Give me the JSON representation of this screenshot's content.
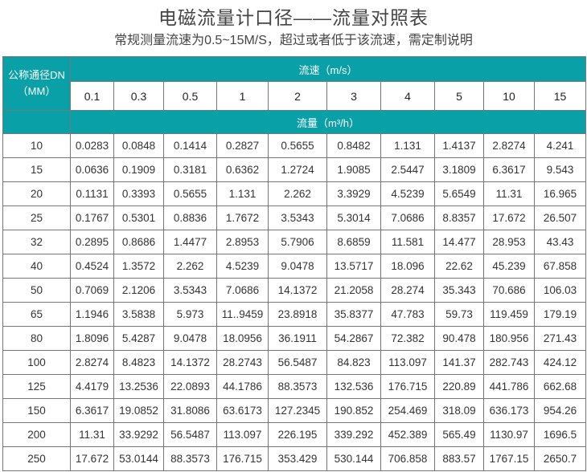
{
  "title": "电磁流量计口径——流量对照表",
  "subtitle": "常规测量流速为0.5~15M/S，超过或者低于该流速，需定制说明",
  "colors": {
    "header_bg": "#0aa0a8",
    "border": "#777777"
  },
  "table": {
    "dn_header_line1": "公称通径DN",
    "dn_header_line2": "（MM）",
    "velocity_header": "流速（m/s）",
    "flow_header": "流量（m³/h）",
    "velocities": [
      "0.1",
      "0.3",
      "0.5",
      "1",
      "2",
      "3",
      "4",
      "5",
      "10",
      "15"
    ],
    "rows": [
      {
        "dn": "10",
        "values": [
          "0.0283",
          "0.0848",
          "0.1414",
          "0.2827",
          "0.5655",
          "0.8482",
          "1.131",
          "1.4137",
          "2.8274",
          "4.241"
        ]
      },
      {
        "dn": "15",
        "values": [
          "0.0636",
          "0.1909",
          "0.3181",
          "0.6362",
          "1.2724",
          "1.9085",
          "2.5447",
          "3.1809",
          "6.3617",
          "9.543"
        ]
      },
      {
        "dn": "20",
        "values": [
          "0.1131",
          "0.3393",
          "0.5655",
          "1.131",
          "2.262",
          "3.3929",
          "4.5239",
          "5.6549",
          "11.31",
          "16.965"
        ]
      },
      {
        "dn": "25",
        "values": [
          "0.1767",
          "0.5301",
          "0.8836",
          "1.7672",
          "3.5343",
          "5.3014",
          "7.0686",
          "8.8357",
          "17.672",
          "26.507"
        ]
      },
      {
        "dn": "32",
        "values": [
          "0.2895",
          "0.8686",
          "1.4477",
          "2.8953",
          "5.7906",
          "8.6859",
          "11.581",
          "14.477",
          "28.953",
          "43.43"
        ]
      },
      {
        "dn": "40",
        "values": [
          "0.4524",
          "1.3572",
          "2.262",
          "4.5239",
          "9.0478",
          "13.5717",
          "18.096",
          "22.62",
          "45.239",
          "67.858"
        ]
      },
      {
        "dn": "50",
        "values": [
          "0.7069",
          "2.1206",
          "3.5343",
          "7.0686",
          "14.1372",
          "21.2058",
          "28.274",
          "35.343",
          "70.686",
          "106.03"
        ]
      },
      {
        "dn": "65",
        "values": [
          "1.1946",
          "3.5838",
          "5.973",
          "11..9459",
          "23.8918",
          "35.8377",
          "47.783",
          "59.73",
          "119.459",
          "179.19"
        ]
      },
      {
        "dn": "80",
        "values": [
          "1.8096",
          "5.4287",
          "9.0478",
          "18.0956",
          "36.1911",
          "54.2867",
          "72.382",
          "90.478",
          "180.956",
          "271.43"
        ]
      },
      {
        "dn": "100",
        "values": [
          "2.8274",
          "8.4823",
          "14.1372",
          "28.2743",
          "56.5487",
          "84.823",
          "113.097",
          "141.37",
          "282.743",
          "424.12"
        ]
      },
      {
        "dn": "125",
        "values": [
          "4.4179",
          "13.2536",
          "22.0893",
          "44.1786",
          "88.3573",
          "132.536",
          "176.715",
          "220.89",
          "441.786",
          "662.68"
        ]
      },
      {
        "dn": "150",
        "values": [
          "6.3617",
          "19.0852",
          "31.8086",
          "63.6173",
          "127.2345",
          "190.852",
          "254.469",
          "318.09",
          "636.173",
          "954.26"
        ]
      },
      {
        "dn": "200",
        "values": [
          "11.31",
          "33.9292",
          "56.5487",
          "113.097",
          "226.195",
          "339.292",
          "452.389",
          "565.49",
          "1130.97",
          "1696.5"
        ]
      },
      {
        "dn": "250",
        "values": [
          "17.672",
          "53.0144",
          "88.3573",
          "176.715",
          "353.429",
          "530.144",
          "706.858",
          "883.57",
          "1767.15",
          "2650.7"
        ]
      }
    ]
  }
}
